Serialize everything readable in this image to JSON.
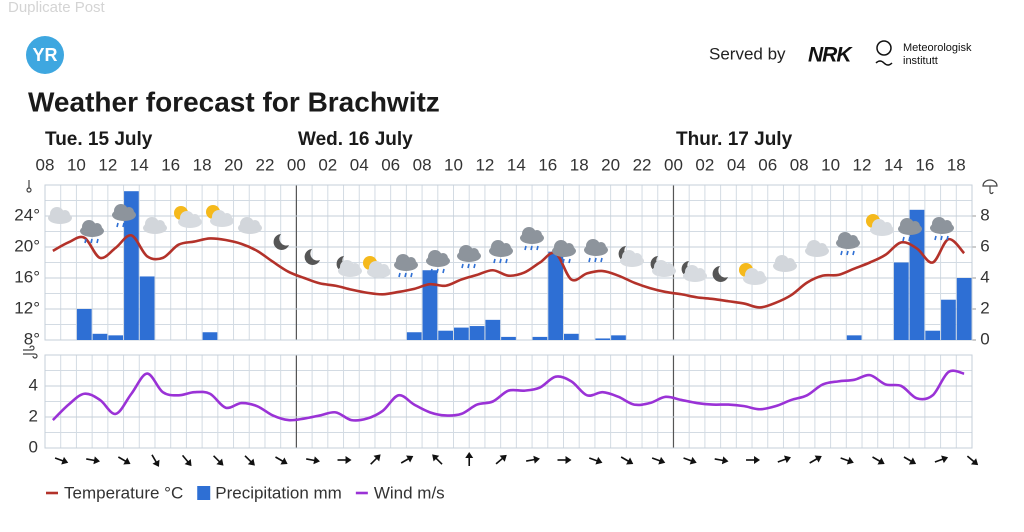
{
  "header": {
    "duplicate": "Duplicate Post",
    "logo": "YR",
    "served_by": "Served by",
    "nrk": "NRK",
    "met_1": "Meteorologisk",
    "met_2": "institutt"
  },
  "chart_data": [
    {
      "type": "line-bar",
      "title": "Weather forecast for Brachwitz",
      "days": [
        "Tue. 15 July",
        "Wed. 16 July",
        "Thur. 17 July"
      ],
      "categories": [
        "08",
        null,
        "10",
        null,
        "12",
        null,
        "14",
        null,
        "16",
        null,
        "18",
        null,
        "20",
        null,
        "22",
        null,
        "00",
        null,
        "02",
        null,
        "04",
        null,
        "06",
        null,
        "08",
        null,
        "10",
        null,
        "12",
        null,
        "14",
        null,
        "16",
        null,
        "18",
        null,
        "20",
        null,
        "22",
        null,
        "00",
        null,
        "02",
        null,
        "04",
        null,
        "06",
        null,
        "08",
        null,
        "10",
        null,
        "12",
        null,
        "14",
        null,
        "16",
        null,
        "18"
      ],
      "ylim": [
        8,
        28
      ],
      "yticks": [
        {
          "value": 8,
          "label": "8°"
        },
        {
          "value": 12,
          "label": "12°"
        },
        {
          "value": 16,
          "label": "16°"
        },
        {
          "value": 20,
          "label": "20°"
        },
        {
          "value": 24,
          "label": "24°"
        }
      ],
      "y2lim": [
        0,
        10
      ],
      "y2ticks": [
        0,
        2,
        4,
        6,
        8
      ],
      "grid": true,
      "series": [
        {
          "name": "Temperature °C",
          "color": "#b3322a",
          "kind": "line",
          "values": [
            19.5,
            20.6,
            21.2,
            18.6,
            19.9,
            21.5,
            18.8,
            18.6,
            20.3,
            20.7,
            21.1,
            20.9,
            20.4,
            19.5,
            18.1,
            16.8,
            16.0,
            15.3,
            15.0,
            14.5,
            14.1,
            13.9,
            14.2,
            14.6,
            15.2,
            15.0,
            15.8,
            16.4,
            17.0,
            16.3,
            16.7,
            18.0,
            19.2,
            15.8,
            16.6,
            16.9,
            16.3,
            15.4,
            14.7,
            14.2,
            13.9,
            13.5,
            13.3,
            13.0,
            12.7,
            12.2,
            12.8,
            13.8,
            15.4,
            16.3,
            16.4,
            17.2,
            18.0,
            19.0,
            20.6,
            19.8,
            18.0,
            21.0,
            19.2
          ]
        },
        {
          "name": "Precipitation mm",
          "color": "#2e6fd4",
          "kind": "bar",
          "axis": "y2",
          "values": [
            0,
            0,
            2.0,
            0.4,
            0.3,
            9.6,
            4.1,
            0,
            0,
            0,
            0.5,
            0,
            0,
            0,
            0,
            0,
            0,
            0,
            0,
            0,
            0,
            0,
            0,
            0.5,
            4.5,
            0.6,
            0.8,
            0.9,
            1.3,
            0.2,
            0,
            0.2,
            5.7,
            0.4,
            0,
            0.1,
            0.3,
            0,
            0,
            0,
            0,
            0,
            0,
            0,
            0,
            0,
            0,
            0,
            0,
            0,
            0,
            0.3,
            0,
            0,
            5.0,
            8.4,
            0.6,
            2.6,
            4.0
          ]
        }
      ]
    },
    {
      "type": "line",
      "ylim": [
        0,
        6
      ],
      "yticks": [
        0,
        2,
        4
      ],
      "grid": true,
      "series": [
        {
          "name": "Wind m/s",
          "color": "#9a32d6",
          "kind": "line",
          "values": [
            1.8,
            2.8,
            3.5,
            3.1,
            2.2,
            3.5,
            4.8,
            3.6,
            3.4,
            3.6,
            3.5,
            2.6,
            2.9,
            2.7,
            2.1,
            1.8,
            1.9,
            2.1,
            2.3,
            1.8,
            1.9,
            2.4,
            3.4,
            2.8,
            2.3,
            2.1,
            2.2,
            2.8,
            3.0,
            3.7,
            3.7,
            3.9,
            4.6,
            4.3,
            3.4,
            3.6,
            3.3,
            2.8,
            2.9,
            3.3,
            3.1,
            2.9,
            2.8,
            2.8,
            2.7,
            2.5,
            2.7,
            3.1,
            3.4,
            4.1,
            4.3,
            4.4,
            4.7,
            4.1,
            4.0,
            3.2,
            3.4,
            4.9,
            4.8
          ]
        }
      ],
      "wind_direction_deg": [
        20,
        10,
        30,
        60,
        50,
        45,
        45,
        30,
        10,
        0,
        -45,
        -30,
        -135,
        -90,
        -40,
        -10,
        0,
        20,
        30,
        20,
        20,
        10,
        0,
        -20,
        -30,
        20,
        30,
        30,
        -20,
        40
      ]
    }
  ]
}
